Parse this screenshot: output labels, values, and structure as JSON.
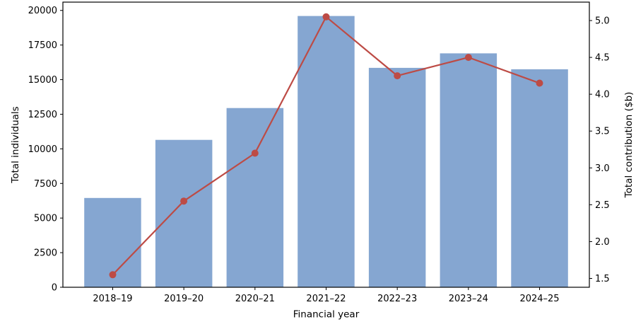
{
  "chart_data": {
    "type": "bar",
    "subtype": "dual-axis-bar-and-line",
    "title": "",
    "categories": [
      "2018–19",
      "2019–20",
      "2020–21",
      "2021–22",
      "2022–23",
      "2023–24",
      "2024–25"
    ],
    "series": [
      {
        "name": "Total individuals",
        "type": "bar",
        "axis": "left",
        "color": "#85A6D1",
        "values": [
          6450,
          10650,
          12950,
          19600,
          15850,
          16900,
          15750
        ]
      },
      {
        "name": "Total contribution ($b)",
        "type": "line",
        "axis": "right",
        "color": "#BD4B45",
        "marker": "circle",
        "values": [
          1.55,
          2.55,
          3.2,
          5.05,
          4.25,
          4.5,
          4.15
        ]
      }
    ],
    "xlabel": "Financial year",
    "ylabel_left": "Total individuals",
    "ylabel_right": "Total contribution ($b)",
    "ylim_left": [
      0,
      20600
    ],
    "ylim_right": [
      1.38,
      5.25
    ],
    "yticks_left": [
      0,
      2500,
      5000,
      7500,
      10000,
      12500,
      15000,
      17500,
      20000
    ],
    "yticks_right": [
      1.5,
      2.0,
      2.5,
      3.0,
      3.5,
      4.0,
      4.5,
      5.0
    ],
    "grid": false,
    "legend": false,
    "axis_color": "#000000",
    "background": "#ffffff"
  }
}
